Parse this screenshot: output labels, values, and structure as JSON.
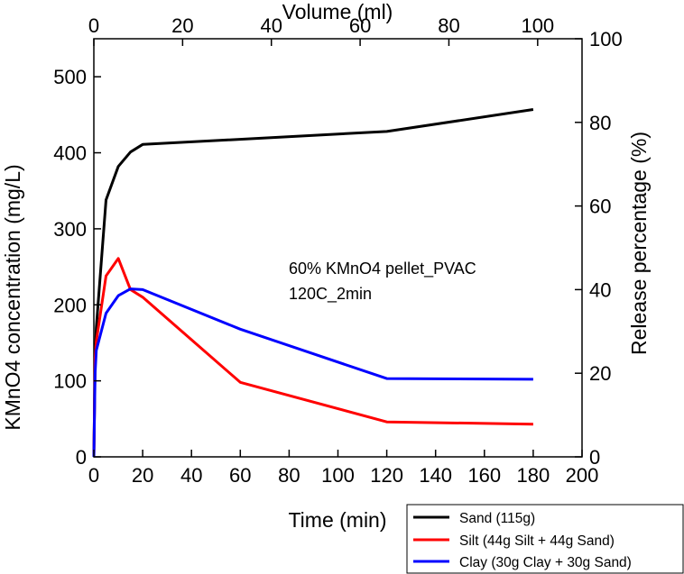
{
  "chart_data": {
    "type": "line",
    "title": "",
    "xlabel": "Time (min)",
    "ylabel": "KMnO4 concentration (mg/L)",
    "x2label": "Volume (ml)",
    "y2label": "Release percentage (%)",
    "xlim": [
      0,
      200
    ],
    "ylim": [
      0,
      550
    ],
    "x2lim": [
      0,
      110
    ],
    "y2lim": [
      0,
      100
    ],
    "xticks": [
      0,
      20,
      40,
      60,
      80,
      100,
      120,
      140,
      160,
      180,
      200
    ],
    "yticks": [
      0,
      100,
      200,
      300,
      400,
      500
    ],
    "x2ticks": [
      0,
      20,
      40,
      60,
      80,
      100
    ],
    "y2ticks": [
      0,
      20,
      40,
      60,
      80,
      100
    ],
    "annotation": [
      "60% KMnO4 pellet_PVAC",
      "120C_2min"
    ],
    "legend_position": "bottom-right",
    "series": [
      {
        "name": "Sand (115g)",
        "color": "#000000",
        "x": [
          0,
          0.5,
          1,
          5,
          10,
          15,
          20,
          120,
          180
        ],
        "y": [
          0,
          130,
          170,
          338,
          382,
          401,
          411,
          428,
          457
        ]
      },
      {
        "name": "Silt (44g Silt + 44g Sand)",
        "color": "#ff0000",
        "x": [
          0,
          0.5,
          1,
          5,
          10,
          15,
          20,
          60,
          120,
          180
        ],
        "y": [
          0,
          130,
          152,
          238,
          261,
          220,
          210,
          98,
          46,
          43
        ]
      },
      {
        "name": "Clay (30g Clay + 30g Sand)",
        "color": "#0000ff",
        "x": [
          0,
          0.5,
          1,
          5,
          10,
          15,
          20,
          60,
          120,
          180
        ],
        "y": [
          0,
          110,
          140,
          189,
          212,
          221,
          220,
          168,
          103,
          102
        ]
      }
    ]
  }
}
